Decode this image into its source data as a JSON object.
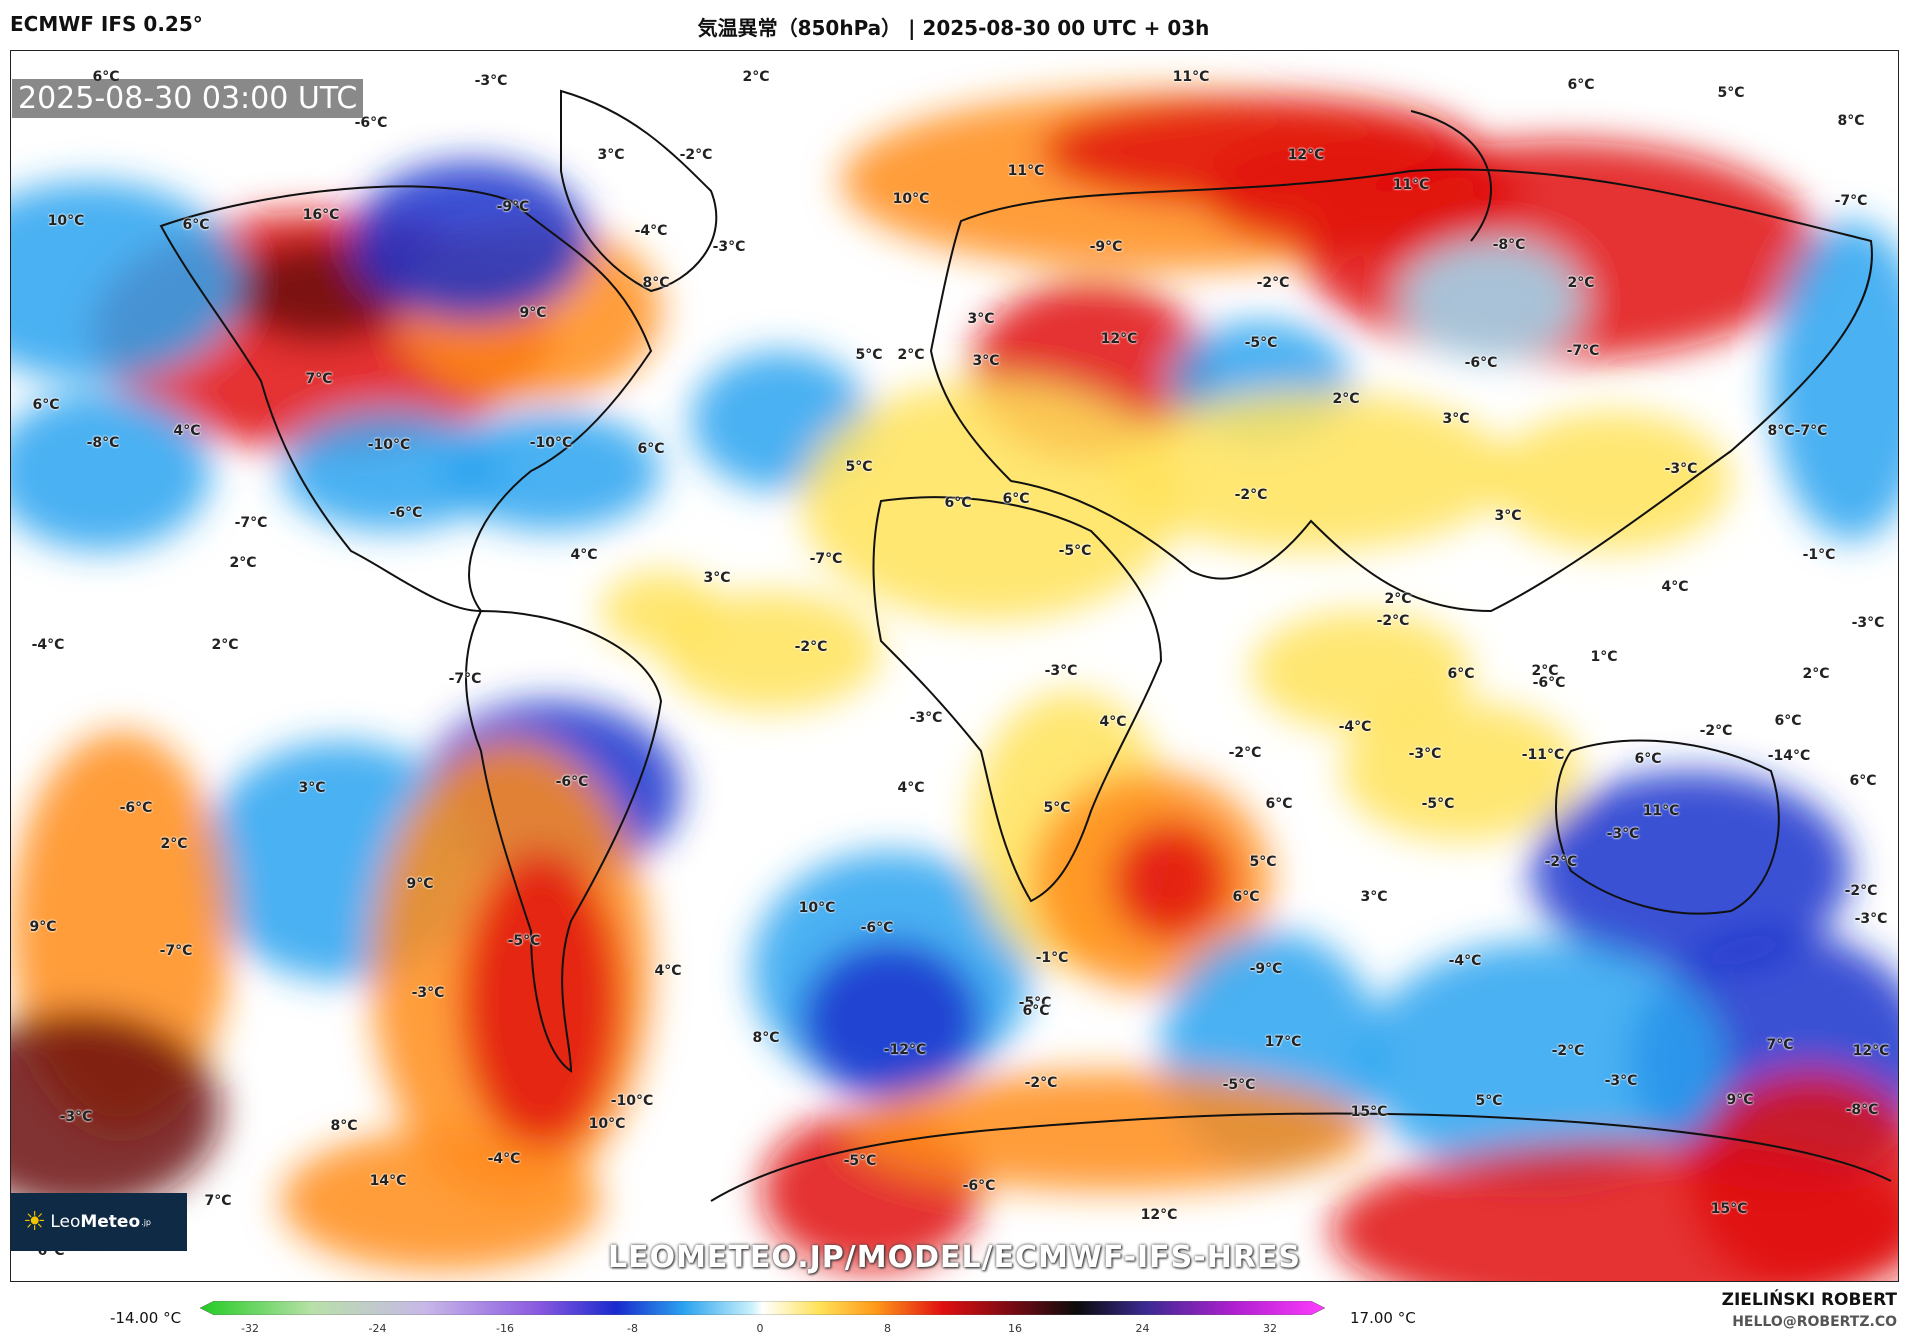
{
  "header": {
    "model": "ECMWF IFS 0.25°",
    "title": "気温異常（850hPa） | 2025-08-30 00 UTC + 03h"
  },
  "map": {
    "timestamp": "2025-08-30 03:00 UTC",
    "watermark": "LEOMETEO.JP/MODEL/ECMWF-IFS-HRES",
    "logo": {
      "text_light": "Leo",
      "text_bold": "Meteo",
      "suffix": ".jp"
    },
    "labels": [
      "6°C",
      "-3°C",
      "2°C",
      "-6°C",
      "3°C",
      "-2°C",
      "11°C",
      "6°C",
      "5°C",
      "8°C",
      "12°C",
      "11°C",
      "11°C",
      "10°C",
      "-7°C",
      "16°C",
      "-9°C",
      "10°C",
      "6°C",
      "-4°C",
      "-3°C",
      "-9°C",
      "-8°C",
      "8°C",
      "9°C",
      "-2°C",
      "2°C",
      "3°C",
      "12°C",
      "-5°C",
      "-6°C",
      "3°C",
      "5°C",
      "2°C",
      "-7°C",
      "7°C",
      "6°C",
      "2°C",
      "-8°C",
      "-10°C",
      "-10°C",
      "3°C",
      "8°C",
      "4°C",
      "-7°C",
      "6°C",
      "5°C",
      "-3°C",
      "6°C",
      "6°C",
      "-2°C",
      "-7°C",
      "-6°C",
      "3°C",
      "-5°C",
      "4°C",
      "-7°C",
      "-1°C",
      "2°C",
      "2°C",
      "3°C",
      "4°C",
      "-2°C",
      "-3°C",
      "-4°C",
      "2°C",
      "-2°C",
      "1°C",
      "2°C",
      "2°C",
      "-7°C",
      "-6°C",
      "6°C",
      "-3°C",
      "4°C",
      "-3°C",
      "-2°C",
      "6°C",
      "-4°C",
      "-14°C",
      "-6°C",
      "3°C",
      "4°C",
      "-2°C",
      "-3°C",
      "-11°C",
      "6°C",
      "5°C",
      "6°C",
      "-5°C",
      "-3°C",
      "11°C",
      "6°C",
      "5°C",
      "-6°C",
      "2°C",
      "6°C",
      "3°C",
      "-2°C",
      "-2°C",
      "10°C",
      "9°C",
      "-3°C",
      "9°C",
      "-7°C",
      "-5°C",
      "-1°C",
      "-6°C",
      "4°C",
      "-5°C",
      "-4°C",
      "-3°C",
      "-9°C",
      "8°C",
      "6°C",
      "-12°C",
      "17°C",
      "7°C",
      "-2°C",
      "-3°C",
      "-3°C",
      "-2°C",
      "-10°C",
      "-5°C",
      "9°C",
      "15°C",
      "5°C",
      "10°C",
      "12°C",
      "-8°C",
      "8°C",
      "-4°C",
      "-5°C",
      "14°C",
      "7°C",
      "-6°C",
      "12°C",
      "15°C",
      "6°C"
    ],
    "palette": {
      "neg_strong": "#1a33cc",
      "neg_mid": "#2aa3f0",
      "neg_light": "#9fdcf5",
      "neutral": "#ffffff",
      "pos_light": "#ffe35a",
      "pos_mid": "#ff8c1a",
      "pos_strong": "#e01010",
      "pos_extreme": "#6b0a10"
    }
  },
  "colorbar": {
    "min_label": "-14.00 °C",
    "max_label": "17.00 °C",
    "ticks": [
      "-32",
      "-24",
      "-16",
      "-8",
      "0",
      "8",
      "16",
      "24",
      "32"
    ]
  },
  "credit": {
    "name": "ZIELIŃSKI ROBERT",
    "email": "HELLO@ROBERTZ.CO"
  }
}
